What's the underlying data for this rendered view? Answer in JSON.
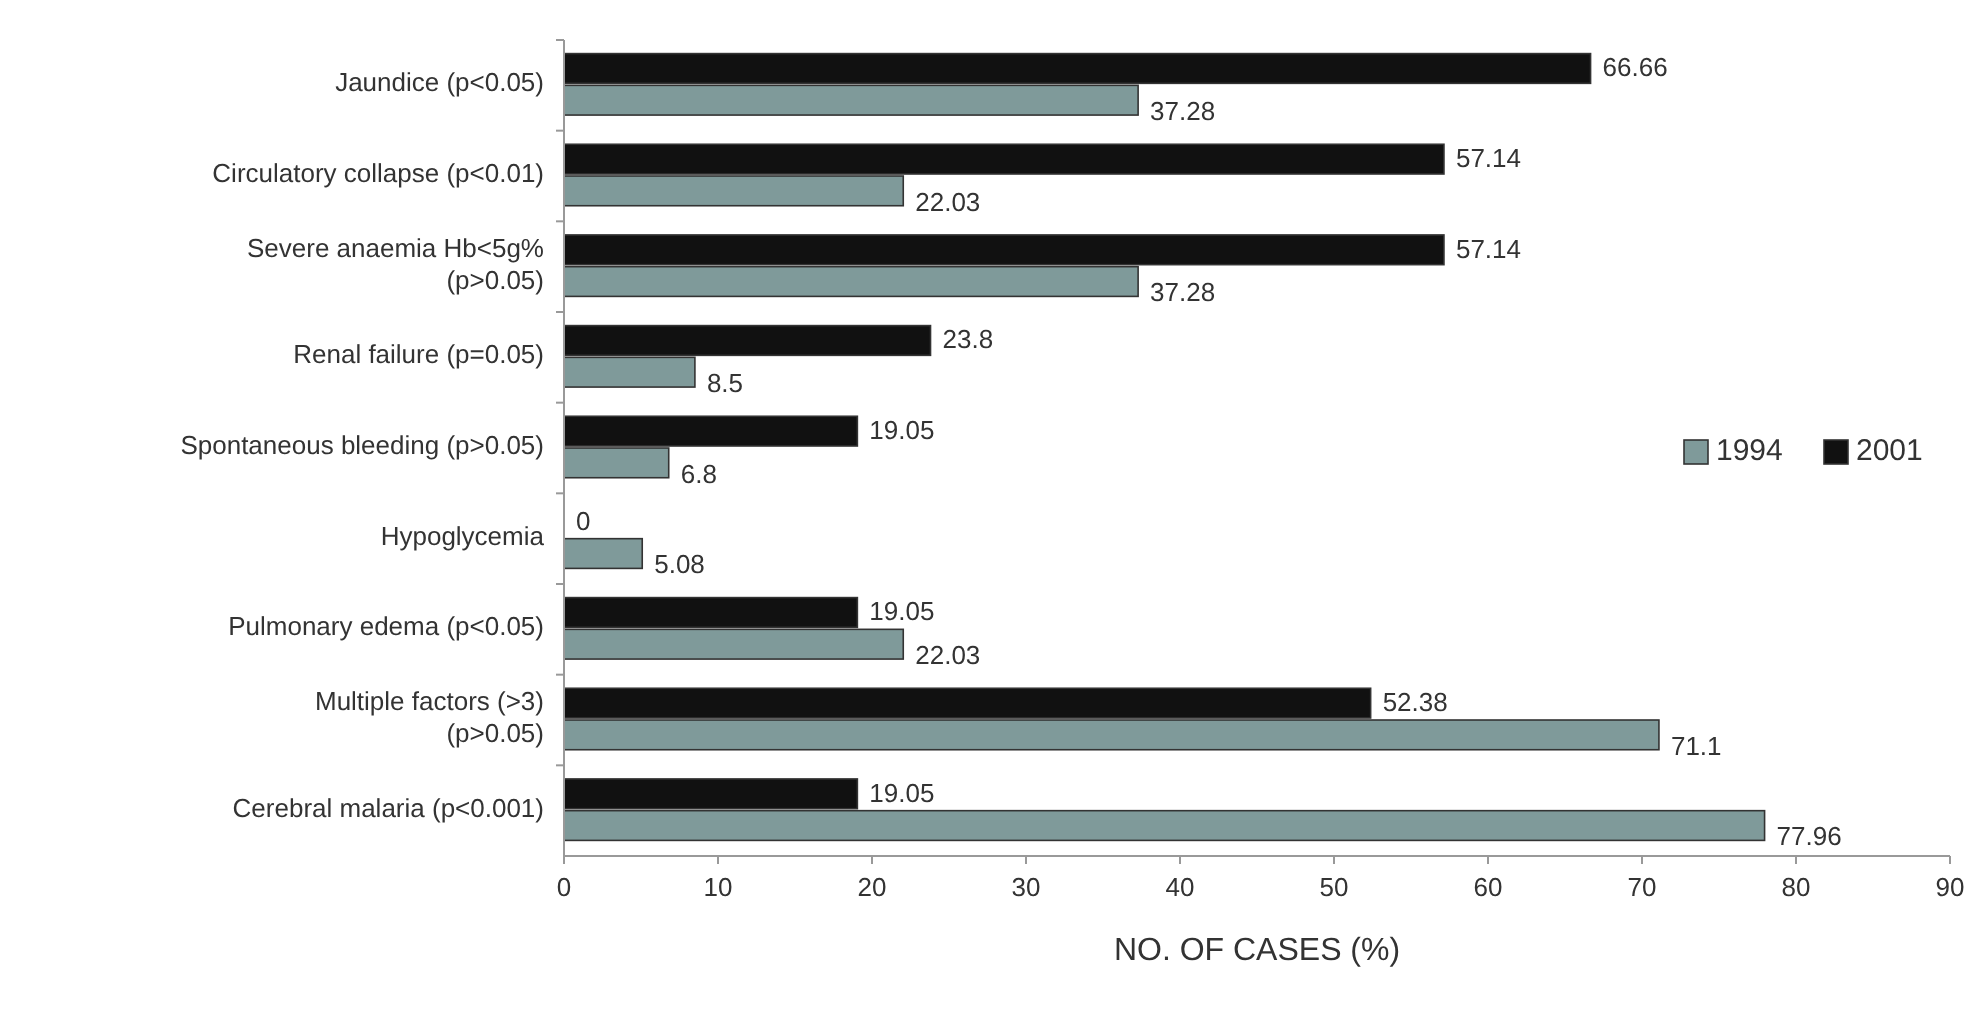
{
  "chart_data": {
    "type": "bar",
    "orientation": "horizontal",
    "xlabel": "NO. OF CASES (%)",
    "categories": [
      "Jaundice (p<0.05)",
      "Circulatory collapse (p<0.01)",
      "Severe anaemia Hb<5g% (p>0.05)",
      "Renal failure (p=0.05)",
      "Spontaneous bleeding (p>0.05)",
      "Hypoglycemia",
      "Pulmonary edema (p<0.05)",
      "Multiple factors (>3) (p>0.05)",
      "Cerebral malaria (p<0.001)"
    ],
    "series": [
      {
        "name": "1994",
        "color": "#7f9a9a",
        "values": [
          37.28,
          22.03,
          37.28,
          8.5,
          6.8,
          5.08,
          22.03,
          71.1,
          77.96
        ]
      },
      {
        "name": "2001",
        "color": "#111111",
        "values": [
          66.66,
          57.14,
          57.14,
          23.8,
          19.05,
          0,
          19.05,
          52.38,
          19.05
        ]
      }
    ],
    "xlim": [
      0,
      90
    ],
    "xticks": [
      0,
      10,
      20,
      30,
      40,
      50,
      60,
      70,
      80,
      90
    ],
    "data_labels": true,
    "legend": "right",
    "grid": false
  }
}
